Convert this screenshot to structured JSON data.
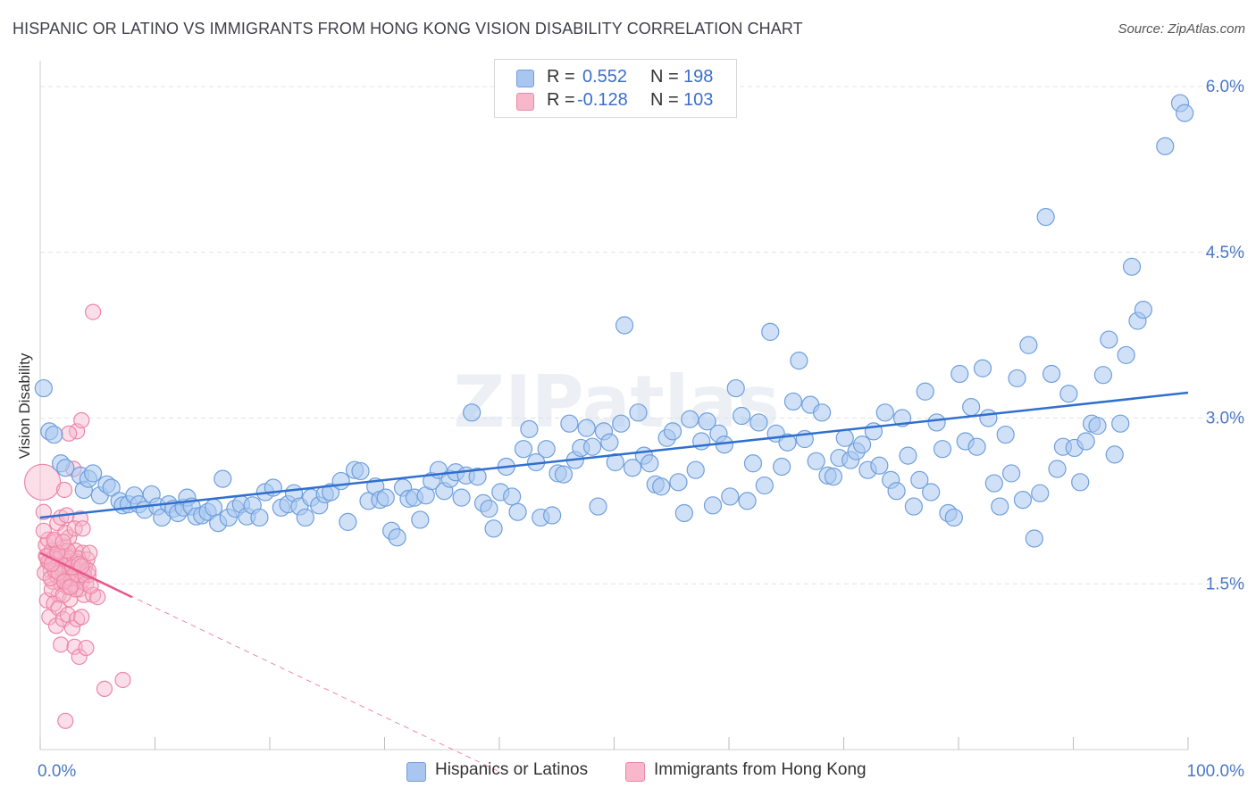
{
  "title": "HISPANIC OR LATINO VS IMMIGRANTS FROM HONG KONG VISION DISABILITY CORRELATION CHART",
  "source": "Source: ZipAtlas.com",
  "watermark": "ZIPatlas",
  "legend_top": {
    "rows": [
      {
        "r_label": "R =",
        "r_value": "0.552",
        "n_label": "N =",
        "n_value": "198",
        "color": "#a9c6f0"
      },
      {
        "r_label": "R =",
        "r_value": "-0.128",
        "n_label": "N =",
        "n_value": "103",
        "color": "#f7b8cc"
      }
    ]
  },
  "legend_bottom": [
    {
      "label": "Hispanics or Latinos",
      "color": "#a9c6f0"
    },
    {
      "label": "Immigrants from Hong Kong",
      "color": "#f7b8cc"
    }
  ],
  "chart_data": {
    "type": "scatter",
    "xlabel": "",
    "ylabel": "Vision Disability",
    "xlim": [
      0,
      100
    ],
    "ylim": [
      0,
      6.0
    ],
    "x_tick_labels": [
      "0.0%",
      "100.0%"
    ],
    "y_ticks": [
      1.5,
      3.0,
      4.5,
      6.0
    ],
    "y_tick_labels": [
      "1.5%",
      "3.0%",
      "4.5%",
      "6.0%"
    ],
    "grid": true,
    "series": [
      {
        "name": "Hispanics or Latinos",
        "color": "#6f9fdd",
        "fill": "#aac8f0",
        "trend": {
          "x": [
            0,
            100
          ],
          "y": [
            2.1,
            3.23
          ],
          "color": "#2f6fd0",
          "style": "solid"
        },
        "points": [
          [
            0.3,
            3.27
          ],
          [
            0.8,
            2.88
          ],
          [
            1.2,
            2.85
          ],
          [
            1.8,
            2.59
          ],
          [
            2.2,
            2.55
          ],
          [
            3.5,
            2.48
          ],
          [
            3.8,
            2.35
          ],
          [
            4.2,
            2.45
          ],
          [
            4.6,
            2.5
          ],
          [
            5.2,
            2.3
          ],
          [
            5.8,
            2.4
          ],
          [
            6.2,
            2.37
          ],
          [
            6.9,
            2.25
          ],
          [
            7.2,
            2.21
          ],
          [
            7.7,
            2.22
          ],
          [
            8.2,
            2.3
          ],
          [
            8.6,
            2.22
          ],
          [
            9.1,
            2.17
          ],
          [
            9.7,
            2.31
          ],
          [
            10.2,
            2.2
          ],
          [
            10.6,
            2.1
          ],
          [
            11.2,
            2.22
          ],
          [
            11.6,
            2.18
          ],
          [
            12.0,
            2.14
          ],
          [
            12.5,
            2.19
          ],
          [
            12.8,
            2.28
          ],
          [
            13.2,
            2.2
          ],
          [
            13.6,
            2.11
          ],
          [
            14.1,
            2.12
          ],
          [
            14.6,
            2.15
          ],
          [
            15.1,
            2.19
          ],
          [
            15.5,
            2.05
          ],
          [
            15.9,
            2.45
          ],
          [
            16.4,
            2.1
          ],
          [
            17.0,
            2.18
          ],
          [
            17.5,
            2.22
          ],
          [
            18.0,
            2.11
          ],
          [
            18.5,
            2.21
          ],
          [
            19.1,
            2.1
          ],
          [
            19.6,
            2.33
          ],
          [
            20.3,
            2.37
          ],
          [
            21.0,
            2.19
          ],
          [
            21.6,
            2.22
          ],
          [
            22.1,
            2.32
          ],
          [
            22.6,
            2.2
          ],
          [
            23.1,
            2.1
          ],
          [
            23.6,
            2.28
          ],
          [
            24.3,
            2.21
          ],
          [
            24.8,
            2.31
          ],
          [
            25.3,
            2.33
          ],
          [
            26.2,
            2.43
          ],
          [
            26.8,
            2.06
          ],
          [
            27.4,
            2.53
          ],
          [
            27.9,
            2.52
          ],
          [
            28.6,
            2.25
          ],
          [
            29.2,
            2.38
          ],
          [
            29.6,
            2.26
          ],
          [
            30.1,
            2.28
          ],
          [
            30.6,
            1.98
          ],
          [
            31.1,
            1.92
          ],
          [
            31.6,
            2.37
          ],
          [
            32.1,
            2.27
          ],
          [
            32.6,
            2.28
          ],
          [
            33.1,
            2.08
          ],
          [
            33.6,
            2.3
          ],
          [
            34.1,
            2.43
          ],
          [
            34.7,
            2.53
          ],
          [
            35.2,
            2.34
          ],
          [
            35.7,
            2.45
          ],
          [
            36.2,
            2.51
          ],
          [
            36.7,
            2.28
          ],
          [
            37.1,
            2.48
          ],
          [
            37.6,
            3.05
          ],
          [
            38.1,
            2.47
          ],
          [
            38.6,
            2.23
          ],
          [
            39.1,
            2.18
          ],
          [
            39.5,
            2.0
          ],
          [
            40.1,
            2.33
          ],
          [
            40.6,
            2.56
          ],
          [
            41.1,
            2.29
          ],
          [
            41.6,
            2.15
          ],
          [
            42.1,
            2.72
          ],
          [
            42.6,
            2.9
          ],
          [
            43.2,
            2.6
          ],
          [
            43.6,
            2.1
          ],
          [
            44.1,
            2.72
          ],
          [
            44.6,
            2.12
          ],
          [
            45.1,
            2.5
          ],
          [
            45.6,
            2.49
          ],
          [
            46.1,
            2.95
          ],
          [
            46.6,
            2.62
          ],
          [
            47.1,
            2.73
          ],
          [
            47.6,
            2.91
          ],
          [
            48.1,
            2.74
          ],
          [
            48.6,
            2.2
          ],
          [
            49.1,
            2.88
          ],
          [
            49.6,
            2.78
          ],
          [
            50.1,
            2.6
          ],
          [
            50.6,
            2.95
          ],
          [
            50.9,
            3.84
          ],
          [
            51.6,
            2.55
          ],
          [
            52.1,
            3.05
          ],
          [
            52.6,
            2.66
          ],
          [
            53.1,
            2.59
          ],
          [
            53.6,
            2.4
          ],
          [
            54.1,
            2.38
          ],
          [
            54.6,
            2.82
          ],
          [
            55.1,
            2.88
          ],
          [
            55.6,
            2.42
          ],
          [
            56.1,
            2.14
          ],
          [
            56.6,
            2.99
          ],
          [
            57.1,
            2.53
          ],
          [
            57.6,
            2.79
          ],
          [
            58.1,
            2.97
          ],
          [
            58.6,
            2.21
          ],
          [
            59.1,
            2.86
          ],
          [
            59.6,
            2.76
          ],
          [
            60.1,
            2.29
          ],
          [
            60.6,
            3.27
          ],
          [
            61.1,
            3.02
          ],
          [
            61.6,
            2.25
          ],
          [
            62.1,
            2.59
          ],
          [
            62.6,
            2.96
          ],
          [
            63.1,
            2.39
          ],
          [
            63.6,
            3.78
          ],
          [
            64.1,
            2.86
          ],
          [
            64.6,
            2.56
          ],
          [
            65.1,
            2.78
          ],
          [
            65.6,
            3.15
          ],
          [
            66.1,
            3.52
          ],
          [
            66.6,
            2.81
          ],
          [
            67.1,
            3.12
          ],
          [
            67.6,
            2.61
          ],
          [
            68.1,
            3.05
          ],
          [
            68.6,
            2.48
          ],
          [
            69.1,
            2.47
          ],
          [
            69.6,
            2.64
          ],
          [
            70.1,
            2.82
          ],
          [
            70.6,
            2.62
          ],
          [
            71.1,
            2.7
          ],
          [
            71.6,
            2.76
          ],
          [
            72.1,
            2.53
          ],
          [
            72.6,
            2.88
          ],
          [
            73.1,
            2.57
          ],
          [
            73.6,
            3.05
          ],
          [
            74.1,
            2.44
          ],
          [
            74.6,
            2.34
          ],
          [
            75.1,
            3.0
          ],
          [
            75.6,
            2.66
          ],
          [
            76.1,
            2.2
          ],
          [
            76.6,
            2.44
          ],
          [
            77.1,
            3.24
          ],
          [
            77.6,
            2.33
          ],
          [
            78.1,
            2.96
          ],
          [
            78.6,
            2.72
          ],
          [
            79.1,
            2.14
          ],
          [
            79.6,
            2.1
          ],
          [
            80.1,
            3.4
          ],
          [
            80.6,
            2.79
          ],
          [
            81.1,
            3.1
          ],
          [
            81.6,
            2.74
          ],
          [
            82.1,
            3.45
          ],
          [
            82.6,
            3.0
          ],
          [
            83.1,
            2.41
          ],
          [
            83.6,
            2.2
          ],
          [
            84.1,
            2.85
          ],
          [
            84.6,
            2.5
          ],
          [
            85.1,
            3.36
          ],
          [
            85.6,
            2.26
          ],
          [
            86.1,
            3.66
          ],
          [
            86.6,
            1.91
          ],
          [
            87.1,
            2.32
          ],
          [
            87.6,
            4.82
          ],
          [
            88.1,
            3.4
          ],
          [
            88.6,
            2.54
          ],
          [
            89.1,
            2.74
          ],
          [
            89.6,
            3.22
          ],
          [
            90.1,
            2.73
          ],
          [
            90.6,
            2.42
          ],
          [
            91.1,
            2.79
          ],
          [
            91.6,
            2.95
          ],
          [
            92.1,
            2.93
          ],
          [
            92.6,
            3.39
          ],
          [
            93.1,
            3.71
          ],
          [
            93.6,
            2.67
          ],
          [
            94.1,
            2.95
          ],
          [
            94.6,
            3.57
          ],
          [
            95.1,
            4.37
          ],
          [
            95.6,
            3.88
          ],
          [
            96.1,
            3.98
          ],
          [
            98.0,
            5.46
          ],
          [
            99.3,
            5.85
          ],
          [
            99.7,
            5.76
          ]
        ]
      },
      {
        "name": "Immigrants from Hong Kong",
        "color": "#ee86a6",
        "fill": "#f7b6cb",
        "trend": {
          "x": [
            0,
            8
          ],
          "y": [
            1.78,
            1.38
          ],
          "color": "#e8578a",
          "style": "solid",
          "extended_x": [
            0,
            40
          ],
          "extended_y": [
            1.78,
            -0.2
          ]
        },
        "points": [
          [
            0.2,
            2.42
          ],
          [
            0.3,
            2.15
          ],
          [
            0.5,
            1.85
          ],
          [
            0.6,
            1.75
          ],
          [
            0.7,
            1.9
          ],
          [
            0.8,
            1.7
          ],
          [
            0.9,
            1.62
          ],
          [
            1.0,
            1.8
          ],
          [
            1.1,
            1.52
          ],
          [
            1.2,
            1.68
          ],
          [
            1.3,
            1.88
          ],
          [
            1.4,
            1.58
          ],
          [
            1.5,
            1.72
          ],
          [
            1.6,
            1.4
          ],
          [
            1.7,
            1.65
          ],
          [
            1.8,
            1.5
          ],
          [
            1.9,
            1.78
          ],
          [
            2.0,
            1.62
          ],
          [
            2.1,
            1.84
          ],
          [
            2.2,
            1.55
          ],
          [
            2.3,
            1.7
          ],
          [
            2.4,
            1.47
          ],
          [
            2.5,
            1.92
          ],
          [
            2.6,
            1.6
          ],
          [
            2.7,
            1.75
          ],
          [
            2.8,
            1.5
          ],
          [
            2.9,
            1.66
          ],
          [
            3.0,
            1.58
          ],
          [
            3.1,
            1.8
          ],
          [
            3.2,
            1.55
          ],
          [
            3.3,
            1.7
          ],
          [
            3.4,
            1.45
          ],
          [
            3.5,
            1.62
          ],
          [
            3.6,
            1.52
          ],
          [
            3.7,
            1.78
          ],
          [
            3.8,
            1.4
          ],
          [
            3.9,
            1.65
          ],
          [
            4.0,
            1.5
          ],
          [
            4.1,
            1.72
          ],
          [
            4.2,
            1.58
          ],
          [
            0.4,
            1.6
          ],
          [
            0.6,
            1.35
          ],
          [
            0.8,
            1.2
          ],
          [
            1.0,
            1.45
          ],
          [
            1.2,
            1.32
          ],
          [
            1.4,
            1.12
          ],
          [
            1.6,
            1.28
          ],
          [
            1.8,
            0.95
          ],
          [
            2.0,
            1.18
          ],
          [
            2.2,
            0.26
          ],
          [
            2.4,
            1.22
          ],
          [
            2.6,
            1.36
          ],
          [
            2.8,
            1.1
          ],
          [
            3.0,
            0.93
          ],
          [
            3.2,
            1.18
          ],
          [
            3.4,
            0.84
          ],
          [
            3.6,
            1.2
          ],
          [
            3.8,
            1.58
          ],
          [
            4.0,
            0.92
          ],
          [
            4.2,
            1.62
          ],
          [
            4.6,
            1.4
          ],
          [
            5.0,
            1.38
          ],
          [
            5.6,
            0.55
          ],
          [
            7.2,
            0.63
          ],
          [
            3.2,
            2.88
          ],
          [
            2.5,
            2.86
          ],
          [
            4.6,
            3.96
          ],
          [
            3.6,
            2.98
          ],
          [
            2.1,
            2.35
          ],
          [
            2.9,
            2.54
          ],
          [
            1.5,
            2.05
          ],
          [
            1.8,
            2.1
          ],
          [
            2.3,
            2.12
          ],
          [
            3.5,
            2.09
          ],
          [
            2.2,
            1.96
          ],
          [
            3.0,
            2.0
          ],
          [
            3.7,
            2.0
          ],
          [
            1.1,
            1.73
          ],
          [
            1.7,
            1.73
          ],
          [
            2.6,
            1.73
          ],
          [
            3.3,
            1.73
          ],
          [
            0.9,
            1.55
          ],
          [
            1.9,
            1.67
          ],
          [
            2.7,
            1.55
          ],
          [
            3.1,
            1.45
          ],
          [
            2.0,
            1.4
          ],
          [
            1.3,
            1.62
          ],
          [
            2.4,
            1.8
          ],
          [
            0.7,
            1.7
          ],
          [
            1.6,
            1.6
          ],
          [
            2.8,
            1.65
          ],
          [
            3.4,
            1.68
          ],
          [
            4.3,
            1.78
          ],
          [
            0.5,
            1.75
          ],
          [
            1.0,
            1.68
          ],
          [
            1.5,
            1.78
          ],
          [
            2.1,
            1.52
          ],
          [
            2.6,
            1.47
          ],
          [
            3.6,
            1.66
          ],
          [
            4.4,
            1.48
          ],
          [
            0.3,
            1.98
          ],
          [
            1.2,
            1.9
          ],
          [
            2.0,
            1.88
          ]
        ]
      }
    ]
  }
}
